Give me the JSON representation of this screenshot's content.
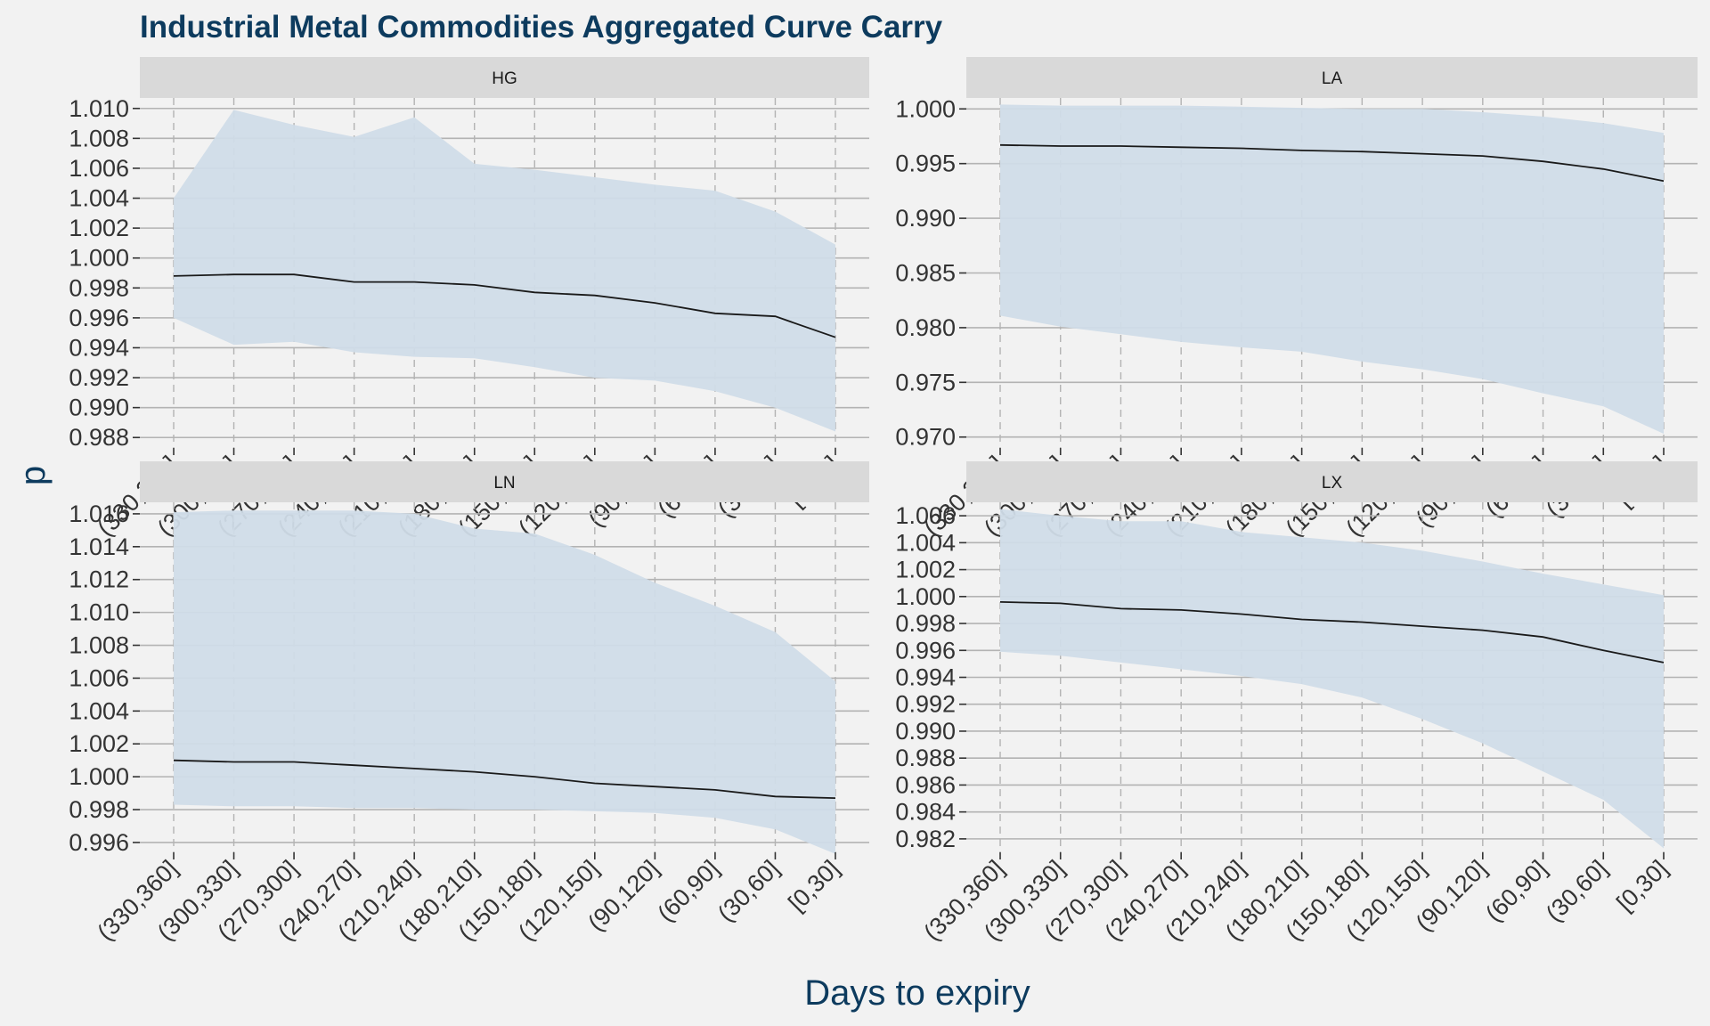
{
  "chart_data": {
    "type": "area",
    "title": "Industrial Metal Commodities Aggregated Curve Carry",
    "xlabel": "Days to expiry",
    "ylabel": "p",
    "categories": [
      "(330,360]",
      "(300,330]",
      "(270,300]",
      "(240,270]",
      "(210,240]",
      "(180,210]",
      "(150,180]",
      "(120,150]",
      "(90,120]",
      "(60,90]",
      "(30,60]",
      "[0,30]"
    ],
    "colors": {
      "band": "#d0dce8",
      "line": "#1a1a1a",
      "panel": "#f2f2f2",
      "strip": "#d9d9d9",
      "grid": "#b3b3b3",
      "title": "#0d3b5e"
    },
    "grid": "on",
    "panels": [
      {
        "name": "HG",
        "ylim": [
          0.9873,
          1.0107
        ],
        "yticks": [
          0.988,
          0.99,
          0.992,
          0.994,
          0.996,
          0.998,
          1.0,
          1.002,
          1.004,
          1.006,
          1.008,
          1.01
        ],
        "ytick_labels": [
          "0.988",
          "0.990",
          "0.992",
          "0.994",
          "0.996",
          "0.998",
          "1.000",
          "1.002",
          "1.004",
          "1.006",
          "1.008",
          "1.010"
        ],
        "series": [
          {
            "name": "",
            "role": "median",
            "values": [
              0.9988,
              0.9989,
              0.9989,
              0.9984,
              0.9984,
              0.9982,
              0.9977,
              0.9975,
              0.997,
              0.9963,
              0.9961,
              0.9947
            ]
          },
          {
            "name": "",
            "role": "upper",
            "values": [
              1.004,
              1.0099,
              1.0089,
              1.0081,
              1.0094,
              1.0063,
              1.0059,
              1.0054,
              1.0049,
              1.0045,
              1.0031,
              1.0009
            ]
          },
          {
            "name": "",
            "role": "lower",
            "values": [
              0.996,
              0.9942,
              0.9944,
              0.9937,
              0.9934,
              0.9933,
              0.9927,
              0.992,
              0.9918,
              0.9911,
              0.99,
              0.9884
            ]
          }
        ]
      },
      {
        "name": "LA",
        "ylim": [
          0.969,
          1.001
        ],
        "yticks": [
          0.97,
          0.975,
          0.98,
          0.985,
          0.99,
          0.995,
          1.0
        ],
        "ytick_labels": [
          "0.970",
          "0.975",
          "0.980",
          "0.985",
          "0.990",
          "0.995",
          "1.000"
        ],
        "series": [
          {
            "name": "",
            "role": "median",
            "values": [
              0.9967,
              0.9966,
              0.9966,
              0.9965,
              0.9964,
              0.9962,
              0.9961,
              0.9959,
              0.9957,
              0.9952,
              0.9945,
              0.9934
            ]
          },
          {
            "name": "",
            "role": "upper",
            "values": [
              1.0004,
              1.0003,
              1.0003,
              1.0003,
              1.0002,
              1.0001,
              1.0,
              1.0,
              0.9997,
              0.9993,
              0.9987,
              0.9978
            ]
          },
          {
            "name": "",
            "role": "lower",
            "values": [
              0.9811,
              0.9801,
              0.9794,
              0.9787,
              0.9782,
              0.9778,
              0.9769,
              0.9762,
              0.9753,
              0.974,
              0.9728,
              0.9703
            ]
          }
        ]
      },
      {
        "name": "LN",
        "ylim": [
          0.9954,
          1.0167
        ],
        "yticks": [
          0.996,
          0.998,
          1.0,
          1.002,
          1.004,
          1.006,
          1.008,
          1.01,
          1.012,
          1.014,
          1.016
        ],
        "ytick_labels": [
          "0.996",
          "0.998",
          "1.000",
          "1.002",
          "1.004",
          "1.006",
          "1.008",
          "1.010",
          "1.012",
          "1.014",
          "1.016"
        ],
        "series": [
          {
            "name": "",
            "role": "median",
            "values": [
              1.001,
              1.0009,
              1.0009,
              1.0007,
              1.0005,
              1.0003,
              1.0,
              0.9996,
              0.9994,
              0.9992,
              0.9988,
              0.9987
            ]
          },
          {
            "name": "",
            "role": "upper",
            "values": [
              1.0161,
              1.0162,
              1.0162,
              1.0162,
              1.016,
              1.0151,
              1.0148,
              1.0135,
              1.0118,
              1.0104,
              1.0088,
              1.0058
            ]
          },
          {
            "name": "",
            "role": "lower",
            "values": [
              0.9983,
              0.9982,
              0.9982,
              0.9981,
              0.9981,
              0.998,
              0.998,
              0.9979,
              0.9978,
              0.9975,
              0.9968,
              0.9953
            ]
          }
        ]
      },
      {
        "name": "LX",
        "ylim": [
          0.981,
          1.007
        ],
        "yticks": [
          0.982,
          0.984,
          0.986,
          0.988,
          0.99,
          0.992,
          0.994,
          0.996,
          0.998,
          1.0,
          1.002,
          1.004,
          1.006
        ],
        "ytick_labels": [
          "0.982",
          "0.984",
          "0.986",
          "0.988",
          "0.990",
          "0.992",
          "0.994",
          "0.996",
          "0.998",
          "1.000",
          "1.002",
          "1.004",
          "1.006"
        ],
        "series": [
          {
            "name": "",
            "role": "median",
            "values": [
              0.9996,
              0.9995,
              0.9991,
              0.999,
              0.9987,
              0.9983,
              0.9981,
              0.9978,
              0.9975,
              0.997,
              0.996,
              0.9951
            ]
          },
          {
            "name": "",
            "role": "upper",
            "values": [
              1.0065,
              1.006,
              1.0056,
              1.0056,
              1.0048,
              1.0044,
              1.004,
              1.0034,
              1.0026,
              1.0017,
              1.0009,
              1.0001
            ]
          },
          {
            "name": "",
            "role": "lower",
            "values": [
              0.9959,
              0.9956,
              0.9951,
              0.9946,
              0.9941,
              0.9935,
              0.9925,
              0.9909,
              0.9891,
              0.987,
              0.9849,
              0.9813
            ]
          }
        ]
      }
    ]
  }
}
